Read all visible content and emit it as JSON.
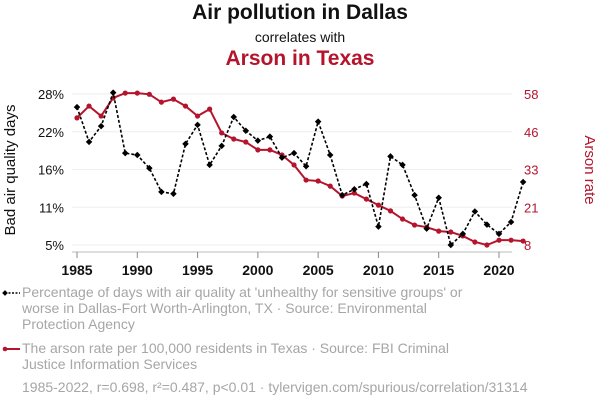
{
  "header": {
    "title": "Air pollution in Dallas",
    "subtitle": "correlates with",
    "title2": "Arson in Texas"
  },
  "colors": {
    "series1": "#000000",
    "series2": "#b5142d",
    "muted": "#a6a6a6",
    "grid": "#eeeeee"
  },
  "legend": {
    "series1": "Percentage of days with air quality at 'unhealthy for sensitive groups' or worse in Dallas-Fort Worth-Arlington, TX · Source: Environmental Protection Agency",
    "series2": "The arson rate per 100,000 residents in Texas · Source: FBI Criminal Justice Information Services"
  },
  "footer": "1985-2022, r=0.698, r²=0.487, p<0.01 · tylervigen.com/spurious/correlation/31314",
  "chart_data": {
    "type": "line",
    "title": "Air pollution in Dallas correlates with Arson in Texas",
    "xlabel": "",
    "ylabel_left": "Bad air quality days",
    "ylabel_right": "Arson rate",
    "x": [
      1985,
      1986,
      1987,
      1988,
      1989,
      1990,
      1991,
      1992,
      1993,
      1994,
      1995,
      1996,
      1997,
      1998,
      1999,
      2000,
      2001,
      2002,
      2003,
      2004,
      2005,
      2006,
      2007,
      2008,
      2009,
      2010,
      2011,
      2012,
      2013,
      2014,
      2015,
      2016,
      2017,
      2018,
      2019,
      2020,
      2021,
      2022
    ],
    "x_ticks": [
      "1985",
      "1990",
      "1995",
      "2000",
      "2005",
      "2010",
      "2015",
      "2020"
    ],
    "x_tick_values": [
      1985,
      1990,
      1995,
      2000,
      2005,
      2010,
      2015,
      2020
    ],
    "xlim": [
      1984.8,
      2023
    ],
    "y_left": {
      "ticks": [
        "28%",
        "22%",
        "16%",
        "11%",
        "5%"
      ],
      "tick_values": [
        28,
        22.25,
        16.5,
        10.75,
        5
      ],
      "ylim": [
        5,
        28
      ]
    },
    "y_right": {
      "ticks": [
        "58",
        "46",
        "33",
        "21",
        "8"
      ],
      "tick_values": [
        58,
        45.5,
        33,
        20.5,
        8
      ],
      "ylim": [
        8,
        58
      ]
    },
    "grid": true,
    "legend_position": "bottom",
    "series": [
      {
        "name": "Percentage of days with air quality at 'unhealthy for sensitive groups' or worse in Dallas-Fort Worth-Arlington, TX",
        "axis": "left",
        "style": "dashed-diamond",
        "values": [
          26.0,
          20.7,
          23.1,
          28.2,
          19.0,
          18.7,
          16.7,
          13.1,
          12.8,
          20.4,
          23.3,
          17.2,
          20.1,
          24.5,
          22.4,
          20.9,
          21.5,
          18.3,
          19.0,
          17.0,
          23.8,
          18.7,
          12.6,
          13.5,
          14.3,
          7.8,
          18.5,
          17.2,
          12.6,
          7.5,
          12.2,
          5.0,
          6.7,
          10.1,
          8.1,
          6.7,
          8.5,
          14.6
        ]
      },
      {
        "name": "The arson rate per 100,000 residents in Texas",
        "axis": "right",
        "style": "solid-circle",
        "values": [
          50.1,
          54.0,
          50.7,
          56.7,
          58.3,
          58.3,
          57.9,
          55.3,
          56.3,
          54.0,
          50.7,
          53.0,
          45.1,
          43.1,
          42.1,
          39.5,
          39.5,
          37.8,
          34.5,
          29.5,
          29.2,
          27.5,
          24.2,
          25.2,
          23.2,
          21.2,
          19.3,
          16.6,
          14.6,
          13.9,
          12.6,
          12.3,
          11.0,
          9.0,
          8.0,
          9.6,
          9.6,
          9.3
        ]
      }
    ]
  }
}
